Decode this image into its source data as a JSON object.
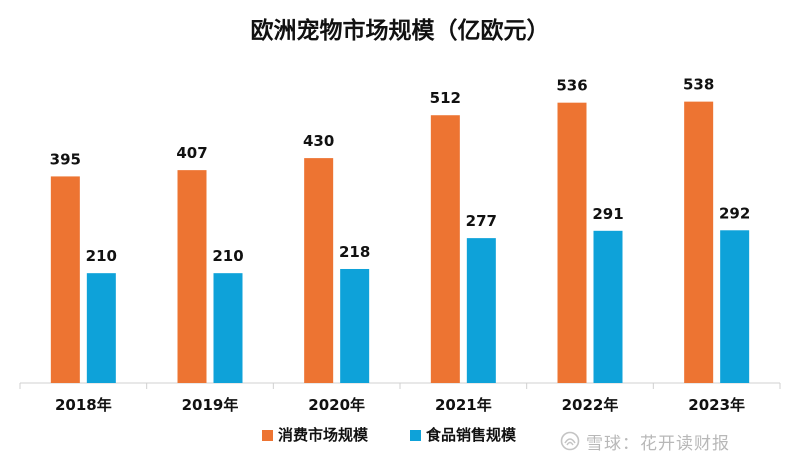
{
  "chart_data": {
    "type": "bar",
    "title": "欧洲宠物市场规模（亿欧元）",
    "categories": [
      "2018年",
      "2019年",
      "2020年",
      "2021年",
      "2022年",
      "2023年"
    ],
    "series": [
      {
        "name": "消费市场规模",
        "values": [
          395,
          407,
          430,
          512,
          536,
          538
        ],
        "color": "#ED7432"
      },
      {
        "name": "食品销售规模",
        "values": [
          210,
          210,
          218,
          277,
          291,
          292
        ],
        "color": "#0EA2D9"
      }
    ],
    "ylim": [
      0,
      600
    ],
    "grid": false,
    "legend": "bottom-center",
    "data_labels": true
  },
  "watermark": {
    "text": "雪球：花开读财报",
    "icon": "snowball-logo-icon"
  }
}
